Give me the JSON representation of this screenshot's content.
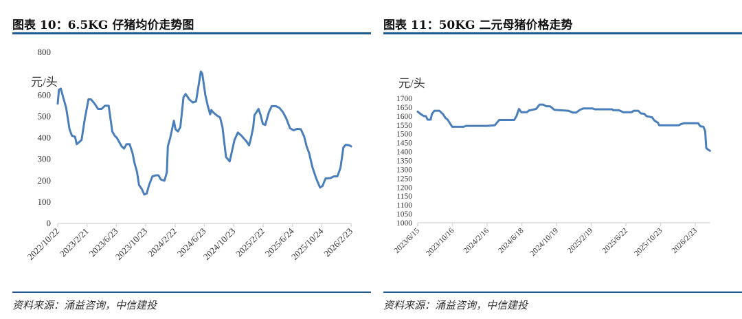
{
  "panels": [
    {
      "title": "图表 10：6.5KG 仔猪均价走势图",
      "source": "资料来源：涌益咨询，中信建投"
    },
    {
      "title": "图表 11：50KG 二元母猪价格走势",
      "source": "资料来源：涌益咨询，中信建投"
    }
  ],
  "colors": {
    "line": "#4a7ebb",
    "rule": "#1f5a8e",
    "axis": "#d9d9d9"
  },
  "chart_data": [
    {
      "type": "line",
      "title": "图表 10：6.5KG 仔猪均价走势图",
      "ylabel": "元/头",
      "ylim": [
        0,
        800
      ],
      "yticks": [
        0,
        100,
        200,
        300,
        400,
        500,
        600,
        800
      ],
      "xticks": [
        "2022/10/22",
        "2023/2/21",
        "2023/6/23",
        "2023/10/23",
        "2024/2/22",
        "2024/6/23",
        "2024/10/23",
        "2025/2/22",
        "2025/6/24",
        "2025/10/24",
        "2026/2/23"
      ],
      "grid": false,
      "series": [
        {
          "points": [
            [
              "2022-10-22",
              560
            ],
            [
              "2022-10-27",
              625
            ],
            [
              "2022-11-04",
              630
            ],
            [
              "2022-11-16",
              580
            ],
            [
              "2022-11-26",
              540
            ],
            [
              "2022-12-10",
              440
            ],
            [
              "2022-12-20",
              410
            ],
            [
              "2023-01-02",
              405
            ],
            [
              "2023-01-09",
              370
            ],
            [
              "2023-01-29",
              390
            ],
            [
              "2023-02-12",
              490
            ],
            [
              "2023-02-27",
              580
            ],
            [
              "2023-03-09",
              580
            ],
            [
              "2023-03-24",
              560
            ],
            [
              "2023-04-08",
              535
            ],
            [
              "2023-04-22",
              535
            ],
            [
              "2023-05-07",
              550
            ],
            [
              "2023-05-22",
              550
            ],
            [
              "2023-06-06",
              430
            ],
            [
              "2023-06-16",
              410
            ],
            [
              "2023-06-25",
              400
            ],
            [
              "2023-07-15",
              360
            ],
            [
              "2023-07-25",
              350
            ],
            [
              "2023-08-04",
              370
            ],
            [
              "2023-08-17",
              370
            ],
            [
              "2023-08-29",
              330
            ],
            [
              "2023-09-07",
              280
            ],
            [
              "2023-09-17",
              240
            ],
            [
              "2023-09-25",
              180
            ],
            [
              "2023-10-07",
              160
            ],
            [
              "2023-10-17",
              135
            ],
            [
              "2023-10-27",
              140
            ],
            [
              "2023-11-06",
              180
            ],
            [
              "2023-11-20",
              220
            ],
            [
              "2023-12-05",
              225
            ],
            [
              "2023-12-15",
              225
            ],
            [
              "2023-12-25",
              205
            ],
            [
              "2024-01-09",
              200
            ],
            [
              "2024-01-19",
              240
            ],
            [
              "2024-01-23",
              360
            ],
            [
              "2024-02-02",
              400
            ],
            [
              "2024-02-17",
              480
            ],
            [
              "2024-02-24",
              440
            ],
            [
              "2024-03-05",
              430
            ],
            [
              "2024-03-15",
              450
            ],
            [
              "2024-03-28",
              590
            ],
            [
              "2024-04-06",
              605
            ],
            [
              "2024-04-21",
              580
            ],
            [
              "2024-05-06",
              565
            ],
            [
              "2024-05-19",
              570
            ],
            [
              "2024-05-29",
              640
            ],
            [
              "2024-06-08",
              710
            ],
            [
              "2024-06-14",
              700
            ],
            [
              "2024-06-27",
              600
            ],
            [
              "2024-07-07",
              550
            ],
            [
              "2024-07-17",
              510
            ],
            [
              "2024-07-22",
              530
            ],
            [
              "2024-07-29",
              520
            ],
            [
              "2024-08-13",
              505
            ],
            [
              "2024-08-27",
              495
            ],
            [
              "2024-09-06",
              450
            ],
            [
              "2024-09-21",
              310
            ],
            [
              "2024-10-06",
              290
            ],
            [
              "2024-10-16",
              340
            ],
            [
              "2024-10-26",
              390
            ],
            [
              "2024-11-09",
              425
            ],
            [
              "2024-11-24",
              410
            ],
            [
              "2024-12-14",
              385
            ],
            [
              "2024-12-26",
              365
            ],
            [
              "2025-01-03",
              400
            ],
            [
              "2025-01-12",
              450
            ],
            [
              "2025-01-17",
              505
            ],
            [
              "2025-02-03",
              535
            ],
            [
              "2025-02-11",
              510
            ],
            [
              "2025-02-21",
              465
            ],
            [
              "2025-03-03",
              460
            ],
            [
              "2025-03-18",
              520
            ],
            [
              "2025-03-30",
              548
            ],
            [
              "2025-04-16",
              548
            ],
            [
              "2025-05-01",
              540
            ],
            [
              "2025-05-16",
              520
            ],
            [
              "2025-05-30",
              490
            ],
            [
              "2025-06-14",
              445
            ],
            [
              "2025-06-29",
              435
            ],
            [
              "2025-07-14",
              442
            ],
            [
              "2025-07-29",
              440
            ],
            [
              "2025-08-12",
              405
            ],
            [
              "2025-08-22",
              360
            ],
            [
              "2025-09-01",
              330
            ],
            [
              "2025-09-16",
              260
            ],
            [
              "2025-10-01",
              210
            ],
            [
              "2025-10-17",
              168
            ],
            [
              "2025-10-27",
              175
            ],
            [
              "2025-11-09",
              210
            ],
            [
              "2025-11-29",
              212
            ],
            [
              "2025-12-14",
              220
            ],
            [
              "2025-12-28",
              220
            ],
            [
              "2026-01-10",
              260
            ],
            [
              "2026-01-22",
              355
            ],
            [
              "2026-02-01",
              368
            ],
            [
              "2026-02-16",
              365
            ],
            [
              "2026-02-23",
              360
            ]
          ]
        }
      ]
    },
    {
      "type": "line",
      "title": "图表 11：50KG 二元母猪价格走势",
      "ylabel": "元/头",
      "ylim": [
        1000,
        1700
      ],
      "yticks": [
        1000,
        1050,
        1100,
        1150,
        1200,
        1250,
        1300,
        1350,
        1400,
        1450,
        1500,
        1550,
        1600,
        1650,
        1700
      ],
      "xticks": [
        "2023/6/15",
        "2023/10/16",
        "2024/2/16",
        "2024/6/18",
        "2024/10/19",
        "2025/2/19",
        "2025/6/22",
        "2025/10/23",
        "2026/2/23"
      ],
      "grid": false,
      "series": [
        {
          "points": [
            [
              "2023-06-15",
              1625
            ],
            [
              "2023-06-27",
              1610
            ],
            [
              "2023-07-07",
              1600
            ],
            [
              "2023-07-14",
              1600
            ],
            [
              "2023-07-20",
              1580
            ],
            [
              "2023-07-31",
              1580
            ],
            [
              "2023-08-04",
              1610
            ],
            [
              "2023-08-13",
              1630
            ],
            [
              "2023-08-31",
              1630
            ],
            [
              "2023-09-13",
              1610
            ],
            [
              "2023-09-21",
              1590
            ],
            [
              "2023-09-29",
              1580
            ],
            [
              "2023-10-07",
              1560
            ],
            [
              "2023-10-15",
              1540
            ],
            [
              "2023-11-25",
              1540
            ],
            [
              "2023-12-03",
              1545
            ],
            [
              "2024-02-15",
              1545
            ],
            [
              "2024-03-14",
              1548
            ],
            [
              "2024-03-30",
              1578
            ],
            [
              "2024-05-22",
              1578
            ],
            [
              "2024-05-30",
              1600
            ],
            [
              "2024-06-08",
              1640
            ],
            [
              "2024-06-16",
              1622
            ],
            [
              "2024-07-06",
              1622
            ],
            [
              "2024-07-14",
              1632
            ],
            [
              "2024-08-08",
              1640
            ],
            [
              "2024-08-20",
              1665
            ],
            [
              "2024-09-01",
              1665
            ],
            [
              "2024-09-13",
              1655
            ],
            [
              "2024-09-26",
              1655
            ],
            [
              "2024-10-12",
              1635
            ],
            [
              "2024-11-30",
              1630
            ],
            [
              "2024-12-16",
              1620
            ],
            [
              "2024-12-28",
              1620
            ],
            [
              "2025-01-10",
              1635
            ],
            [
              "2025-01-22",
              1643
            ],
            [
              "2025-02-23",
              1643
            ],
            [
              "2025-03-04",
              1638
            ],
            [
              "2025-05-04",
              1638
            ],
            [
              "2025-05-08",
              1633
            ],
            [
              "2025-05-28",
              1633
            ],
            [
              "2025-06-13",
              1622
            ],
            [
              "2025-07-12",
              1622
            ],
            [
              "2025-07-20",
              1630
            ],
            [
              "2025-08-05",
              1630
            ],
            [
              "2025-08-14",
              1615
            ],
            [
              "2025-08-26",
              1613
            ],
            [
              "2025-09-03",
              1600
            ],
            [
              "2025-09-23",
              1593
            ],
            [
              "2025-10-01",
              1575
            ],
            [
              "2025-10-14",
              1562
            ],
            [
              "2025-10-18",
              1548
            ],
            [
              "2025-12-26",
              1548
            ],
            [
              "2026-01-03",
              1555
            ],
            [
              "2026-01-15",
              1560
            ],
            [
              "2026-03-05",
              1560
            ],
            [
              "2026-03-13",
              1543
            ],
            [
              "2026-03-24",
              1540
            ],
            [
              "2026-03-30",
              1515
            ],
            [
              "2026-04-03",
              1420
            ],
            [
              "2026-04-09",
              1412
            ],
            [
              "2026-04-16",
              1405
            ]
          ]
        }
      ]
    }
  ]
}
